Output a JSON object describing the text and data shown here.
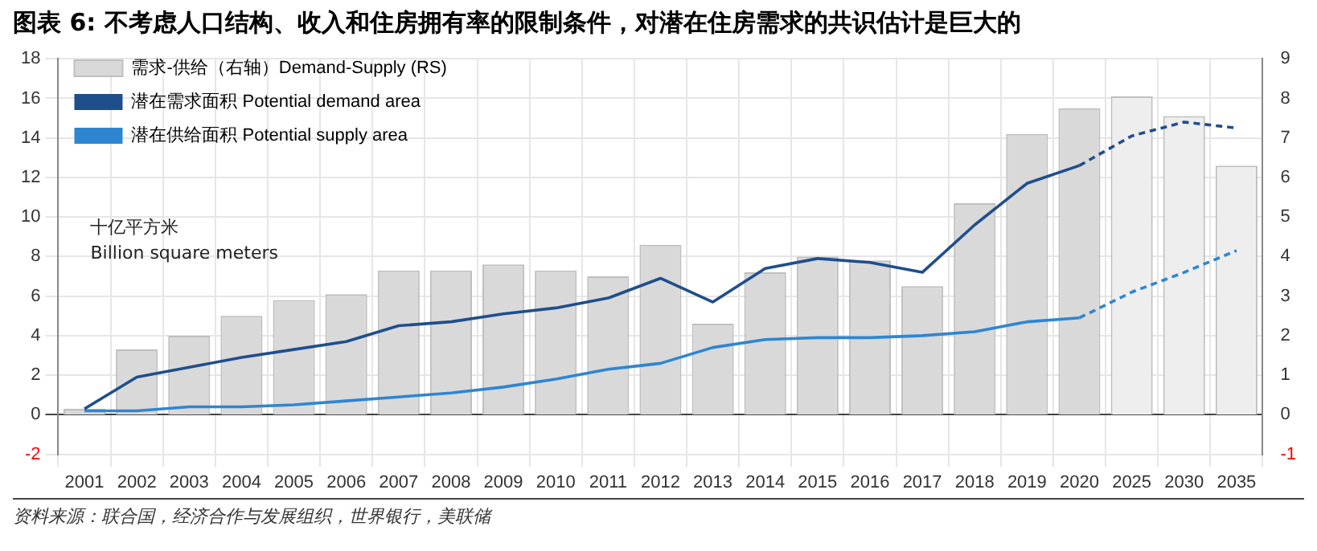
{
  "chart_data": {
    "type": "bar",
    "title": "图表 6: 不考虑人口结构、收入和住房拥有率的限制条件，对潜在住房需求的共识估计是巨大的",
    "categories": [
      "2001",
      "2002",
      "2003",
      "2004",
      "2005",
      "2006",
      "2007",
      "2008",
      "2009",
      "2010",
      "2011",
      "2012",
      "2013",
      "2014",
      "2015",
      "2016",
      "2017",
      "2018",
      "2019",
      "2020",
      "2025",
      "2030",
      "2035"
    ],
    "series": [
      {
        "name": "需求-供给（右轴）Demand-Supply (RS)",
        "axis": "y2",
        "color": "#d9d9d9",
        "colors": [
          "#d9d9d9",
          "#d9d9d9",
          "#d9d9d9",
          "#d9d9d9",
          "#d9d9d9",
          "#d9d9d9",
          "#d9d9d9",
          "#d9d9d9",
          "#d9d9d9",
          "#d9d9d9",
          "#d9d9d9",
          "#d9d9d9",
          "#d9d9d9",
          "#d9d9d9",
          "#d9d9d9",
          "#d9d9d9",
          "#d9d9d9",
          "#d9d9d9",
          "#d9d9d9",
          "#d9d9d9",
          "#eeeeee",
          "#eeeeee",
          "#eeeeee"
        ],
        "values": [
          0.15,
          1.65,
          2.0,
          2.5,
          2.9,
          3.05,
          3.65,
          3.65,
          3.8,
          3.65,
          3.5,
          4.3,
          2.3,
          3.6,
          4.0,
          3.9,
          3.25,
          5.35,
          7.1,
          7.75,
          8.05,
          7.55,
          6.3
        ]
      },
      {
        "name": "潜在需求面积 Potential demand area",
        "type": "line",
        "color": "#1f4e8c",
        "line_style": "solid",
        "values": [
          0.3,
          1.9,
          2.4,
          2.9,
          3.3,
          3.7,
          4.5,
          4.7,
          5.1,
          5.4,
          5.9,
          6.9,
          5.7,
          7.4,
          7.9,
          7.7,
          7.2,
          9.6,
          11.7,
          12.6,
          null,
          null,
          null
        ]
      },
      {
        "name": "潜在供给面积 Potential supply area",
        "type": "line",
        "color": "#2e86d1",
        "line_style": "solid",
        "values": [
          0.2,
          0.2,
          0.4,
          0.4,
          0.5,
          0.7,
          0.9,
          1.1,
          1.4,
          1.8,
          2.3,
          2.6,
          3.4,
          3.8,
          3.9,
          3.9,
          4.0,
          4.2,
          4.7,
          4.9,
          null,
          null,
          null
        ]
      },
      {
        "type": "line",
        "color": "#1f4e8c",
        "line_style": "dashed",
        "values": [
          null,
          null,
          null,
          null,
          null,
          null,
          null,
          null,
          null,
          null,
          null,
          null,
          null,
          null,
          null,
          null,
          null,
          null,
          null,
          12.6,
          14.1,
          14.8,
          14.5
        ]
      },
      {
        "type": "line",
        "color": "#2e86d1",
        "line_style": "dashed",
        "values": [
          null,
          null,
          null,
          null,
          null,
          null,
          null,
          null,
          null,
          null,
          null,
          null,
          null,
          null,
          null,
          null,
          null,
          null,
          null,
          4.9,
          6.2,
          7.2,
          8.3
        ]
      }
    ],
    "ylim": [
      -2,
      18
    ],
    "yticks": [
      -2,
      0,
      2,
      4,
      6,
      8,
      10,
      12,
      14,
      16,
      18
    ],
    "y2lim": [
      -1,
      9
    ],
    "y2ticks": [
      -1,
      0,
      1,
      2,
      3,
      4,
      5,
      6,
      7,
      8,
      9
    ],
    "grid": true,
    "legend": "top left",
    "marker": "none",
    "annotations": [
      "十亿平方米\nBillion square meters",
      "资料来源：联合国，经济合作与发展组织，世界银行，美联储"
    ]
  }
}
